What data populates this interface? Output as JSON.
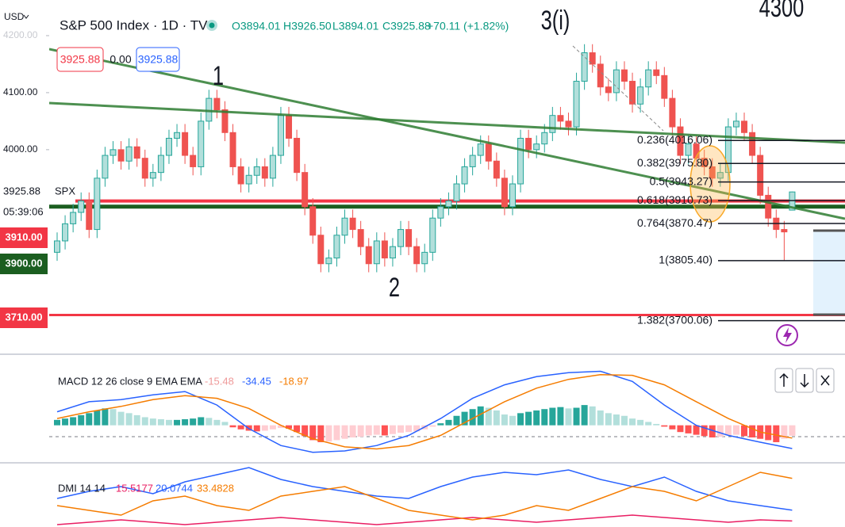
{
  "header": {
    "currency": "USD",
    "title": "S&P 500 Index · 1D · TVC",
    "open": "O3894.01",
    "high": "H3926.50",
    "low": "L3894.01",
    "close": "C3925.88",
    "change": "+70.11 (+1.82%)"
  },
  "buttons": {
    "sell": "3925.88",
    "spread": "0.00",
    "buy": "3925.88"
  },
  "chart_data": [
    {
      "type": "candlestick",
      "symbol_label": "SPX",
      "last_price_label": "3925.88",
      "countdown": "05:39:06",
      "ylim": [
        3644,
        4262.5
      ],
      "yticks": [
        {
          "value": 4200,
          "label": "4200.00"
        },
        {
          "value": 4100,
          "label": "4100.00"
        },
        {
          "value": 4000,
          "label": "4000.00"
        }
      ],
      "up_color": "#26a69a",
      "down_color": "#ef5350",
      "open": [
        3820,
        3840,
        3870,
        3890,
        3910,
        3860,
        3950,
        3990,
        4000,
        3980,
        4005,
        3985,
        3950,
        3960,
        3990,
        4020,
        4030,
        3990,
        3970,
        4050,
        4090,
        4070,
        4030,
        3970,
        3940,
        3955,
        3970,
        3950,
        3990,
        4060,
        4020,
        3960,
        3900,
        3850,
        3800,
        3810,
        3850,
        3880,
        3860,
        3830,
        3800,
        3840,
        3810,
        3830,
        3860,
        3830,
        3800,
        3820,
        3880,
        3900,
        3910,
        3940,
        3970,
        3990,
        4010,
        3980,
        3950,
        3900,
        3940,
        4020,
        4000,
        4010,
        4030,
        4060,
        4050,
        4040,
        4120,
        4170,
        4150,
        4110,
        4100,
        4140,
        4120,
        4080,
        4110,
        4140,
        4130,
        4090,
        4040,
        3990,
        4010,
        3985,
        3970,
        3950,
        3960,
        4040,
        4050,
        4030,
        3990,
        3920,
        3880,
        3860,
        3894.01
      ],
      "high": [
        3855,
        3885,
        3905,
        3925,
        3925,
        3965,
        4005,
        4015,
        4015,
        4020,
        4020,
        4000,
        3975,
        4005,
        4035,
        4045,
        4045,
        4005,
        4065,
        4105,
        4105,
        4085,
        4045,
        3985,
        3970,
        3985,
        3985,
        4005,
        4075,
        4075,
        4035,
        3975,
        3915,
        3865,
        3825,
        3865,
        3895,
        3895,
        3875,
        3845,
        3855,
        3855,
        3845,
        3875,
        3875,
        3845,
        3835,
        3895,
        3915,
        3925,
        3955,
        3985,
        4005,
        4025,
        4025,
        3995,
        3965,
        3955,
        4035,
        4035,
        4025,
        4045,
        4075,
        4075,
        4065,
        4135,
        4185,
        4185,
        4165,
        4125,
        4155,
        4155,
        4135,
        4125,
        4155,
        4155,
        4145,
        4105,
        4055,
        4025,
        4025,
        4000,
        3985,
        3975,
        4055,
        4065,
        4065,
        4045,
        4005,
        3935,
        3895,
        3875,
        3926.5
      ],
      "low": [
        3805,
        3825,
        3855,
        3875,
        3845,
        3845,
        3935,
        3975,
        3965,
        3965,
        3970,
        3935,
        3935,
        3945,
        3975,
        4005,
        3975,
        3955,
        3955,
        4035,
        4055,
        4015,
        3955,
        3925,
        3925,
        3940,
        3935,
        3935,
        3975,
        4005,
        3945,
        3885,
        3835,
        3785,
        3785,
        3795,
        3835,
        3845,
        3815,
        3785,
        3785,
        3795,
        3795,
        3815,
        3815,
        3785,
        3785,
        3805,
        3865,
        3885,
        3895,
        3925,
        3955,
        3975,
        3965,
        3935,
        3885,
        3885,
        3925,
        3985,
        3985,
        3995,
        4015,
        4035,
        4025,
        4025,
        4105,
        4135,
        4095,
        4085,
        4085,
        4105,
        4065,
        4065,
        4095,
        4115,
        4075,
        4025,
        3975,
        3975,
        3970,
        3955,
        3935,
        3935,
        3945,
        4025,
        4015,
        3975,
        3905,
        3865,
        3845,
        3805,
        3894.01
      ],
      "close": [
        3840,
        3870,
        3890,
        3910,
        3860,
        3950,
        3990,
        4000,
        3980,
        4005,
        3985,
        3950,
        3960,
        3990,
        4020,
        4030,
        3990,
        3970,
        4050,
        4090,
        4070,
        4030,
        3970,
        3940,
        3955,
        3970,
        3950,
        3990,
        4060,
        4020,
        3960,
        3900,
        3850,
        3800,
        3810,
        3850,
        3880,
        3860,
        3830,
        3800,
        3840,
        3810,
        3830,
        3860,
        3830,
        3800,
        3820,
        3880,
        3900,
        3910,
        3940,
        3970,
        3990,
        4010,
        3980,
        3950,
        3900,
        3940,
        4020,
        4000,
        4010,
        4030,
        4060,
        4050,
        4040,
        4120,
        4170,
        4150,
        4110,
        4100,
        4140,
        4120,
        4080,
        4110,
        4140,
        4130,
        4090,
        4040,
        3990,
        4010,
        3985,
        3970,
        3950,
        3960,
        4040,
        4050,
        4030,
        3990,
        3920,
        3880,
        3860,
        3855.77,
        3925.88
      ],
      "levels": [
        {
          "value": 3910,
          "label": "3910.00",
          "color": "#f23645"
        },
        {
          "value": 3900,
          "label": "3900.00",
          "color": "#1b5e20"
        },
        {
          "value": 3710,
          "label": "3710.00",
          "color": "#f23645"
        }
      ],
      "fib": [
        {
          "value": 4016.06,
          "label": "0.236(4016.06)"
        },
        {
          "value": 3975.8,
          "label": "0.382(3975.80)"
        },
        {
          "value": 3943.27,
          "label": "0.5(3943.27)"
        },
        {
          "value": 3910.73,
          "label": "0.618(3910.73)"
        },
        {
          "value": 3870.47,
          "label": "0.764(3870.47)"
        },
        {
          "value": 3805.4,
          "label": "1(3805.40)"
        },
        {
          "value": 3700.06,
          "label": "1.382(3700.06)"
        }
      ],
      "annotations": [
        "1",
        "2",
        "3(i)",
        "4300"
      ]
    },
    {
      "type": "macd",
      "title": "MACD 12 26 close 9 EMA EMA",
      "ylim": [
        -45,
        90
      ],
      "histogram_label": "-15.48",
      "histogram_colors": [
        "#26a69a",
        "#b2dfdb",
        "#ff5252",
        "#ffcdd2"
      ],
      "histogram": [
        8,
        10,
        12,
        15,
        18,
        22,
        25,
        24,
        20,
        18,
        15,
        12,
        10,
        9,
        8,
        8,
        9,
        10,
        12,
        11,
        8,
        5,
        -3,
        -6,
        -8,
        -9,
        -8,
        -6,
        -4,
        -5,
        -10,
        -16,
        -22,
        -25,
        -24,
        -22,
        -20,
        -18,
        -17,
        -15,
        -14,
        -15,
        -13,
        -11,
        -10,
        -9,
        -6,
        -2,
        3,
        8,
        14,
        20,
        24,
        28,
        26,
        22,
        16,
        14,
        18,
        20,
        22,
        24,
        26,
        27,
        25,
        26,
        30,
        28,
        22,
        18,
        16,
        14,
        10,
        8,
        5,
        2,
        -2,
        -6,
        -10,
        -12,
        -14,
        -16,
        -18,
        -17,
        -15,
        -14,
        -16,
        -18,
        -20,
        -22,
        -25,
        -20,
        -15.48
      ],
      "x": [
        0,
        4,
        8,
        12,
        16,
        20,
        24,
        28,
        32,
        36,
        40,
        44,
        48,
        52,
        56,
        60,
        64,
        68,
        72,
        76,
        80,
        84,
        88,
        92
      ],
      "series": [
        {
          "color": "#2962ff",
          "last_label": "-34.45",
          "values": [
            20,
            35,
            38,
            45,
            50,
            30,
            -5,
            -30,
            -40,
            -38,
            -30,
            -15,
            10,
            40,
            60,
            72,
            78,
            80,
            65,
            30,
            0,
            -15,
            -25,
            -34.45
          ]
        },
        {
          "color": "#f57c00",
          "last_label": "-18.97",
          "values": [
            10,
            20,
            28,
            38,
            44,
            40,
            25,
            0,
            -20,
            -32,
            -35,
            -30,
            -15,
            10,
            35,
            55,
            68,
            75,
            74,
            60,
            35,
            10,
            -10,
            -18.97
          ]
        }
      ]
    },
    {
      "type": "dmi",
      "title": "DMI 14 14",
      "ylim": [
        13,
        38
      ],
      "x": [
        0,
        4,
        8,
        12,
        16,
        20,
        24,
        28,
        32,
        36,
        40,
        44,
        48,
        52,
        56,
        60,
        64,
        68,
        72,
        76,
        80,
        84,
        88,
        92
      ],
      "series": [
        {
          "color": "#e91e63",
          "last_label": "15.5177",
          "values": [
            14,
            15,
            16,
            15,
            14,
            15,
            16,
            17,
            16,
            15,
            14,
            15,
            16,
            17,
            16,
            15,
            16,
            17,
            18,
            17,
            16,
            15,
            16,
            15.5177
          ]
        },
        {
          "color": "#2962ff",
          "last_label": "20.0744",
          "values": [
            25,
            28,
            30,
            27,
            32,
            35,
            38,
            33,
            30,
            28,
            26,
            25,
            30,
            34,
            36,
            35,
            37,
            33,
            30,
            34,
            28,
            24,
            22,
            20.0744
          ]
        },
        {
          "color": "#f57c00",
          "last_label": "33.4828",
          "values": [
            22,
            20,
            18,
            24,
            26,
            22,
            20,
            26,
            28,
            30,
            25,
            20,
            18,
            16,
            18,
            22,
            20,
            25,
            30,
            28,
            24,
            30,
            36,
            33.4828
          ]
        }
      ]
    }
  ]
}
